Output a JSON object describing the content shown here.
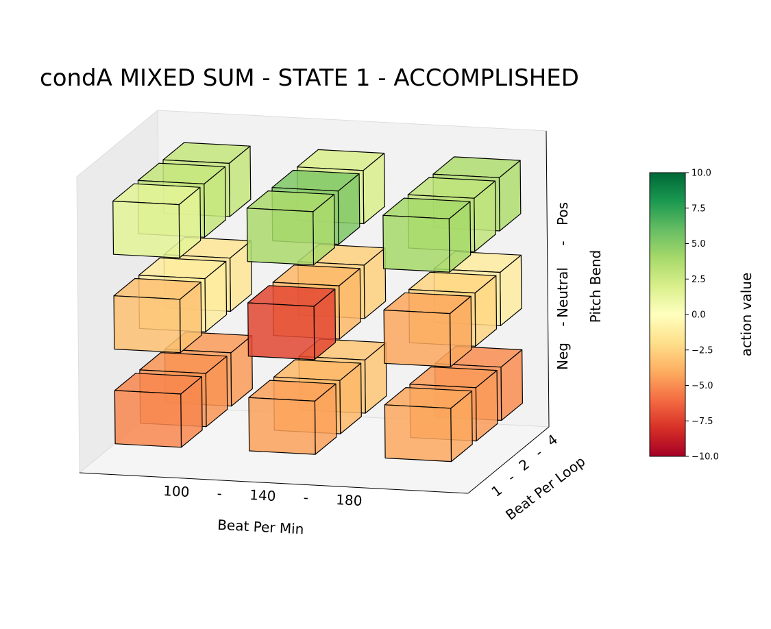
{
  "chart_data": {
    "type": "3d-bar",
    "title": "condA MIXED SUM - STATE 1 - ACCOMPLISHED",
    "x_axis": {
      "label": "Beat Per Min",
      "ticks": [
        "100",
        "-",
        "140",
        "-",
        "180"
      ]
    },
    "y_axis": {
      "label": "Beat Per Loop",
      "ticks": [
        "1",
        "-",
        "2",
        "-",
        "4"
      ]
    },
    "z_axis": {
      "label": "Pitch Bend",
      "ticks": [
        "Neg",
        "-",
        "Neutral",
        "-",
        "Pos"
      ]
    },
    "colorbar": {
      "label": "action value",
      "range": [
        -10,
        10
      ],
      "ticks": [
        "10.0",
        "7.5",
        "5.0",
        "2.5",
        "0.0",
        "−2.5",
        "−5.0",
        "−7.5",
        "−10.0"
      ],
      "colormap": "RdYlGn",
      "stops": [
        "#a50026",
        "#d73027",
        "#f46d43",
        "#fdae61",
        "#fee08b",
        "#ffffbf",
        "#d9ef8b",
        "#a6d96a",
        "#66bd63",
        "#1a9850",
        "#006837"
      ]
    },
    "dimensions": {
      "beat_per_min": [
        "100",
        "140",
        "180"
      ],
      "beat_per_loop": [
        "1",
        "2",
        "4"
      ],
      "pitch_bend": [
        "Neg",
        "Neutral",
        "Pos"
      ]
    },
    "values": [
      {
        "bpm": "100",
        "bpl": "1",
        "pitch": "Pos",
        "value": 1.5
      },
      {
        "bpm": "100",
        "bpl": "2",
        "pitch": "Pos",
        "value": 2.8
      },
      {
        "bpm": "100",
        "bpl": "4",
        "pitch": "Pos",
        "value": 2.8
      },
      {
        "bpm": "140",
        "bpl": "1",
        "pitch": "Pos",
        "value": 3.8
      },
      {
        "bpm": "140",
        "bpl": "2",
        "pitch": "Pos",
        "value": 5.2
      },
      {
        "bpm": "140",
        "bpl": "4",
        "pitch": "Pos",
        "value": 2.0
      },
      {
        "bpm": "180",
        "bpl": "1",
        "pitch": "Pos",
        "value": 4.0
      },
      {
        "bpm": "180",
        "bpl": "2",
        "pitch": "Pos",
        "value": 3.0
      },
      {
        "bpm": "180",
        "bpl": "4",
        "pitch": "Pos",
        "value": 3.6
      },
      {
        "bpm": "100",
        "bpl": "1",
        "pitch": "Neutral",
        "value": -3.2
      },
      {
        "bpm": "100",
        "bpl": "2",
        "pitch": "Neutral",
        "value": -1.2
      },
      {
        "bpm": "100",
        "bpl": "4",
        "pitch": "Neutral",
        "value": -1.6
      },
      {
        "bpm": "140",
        "bpl": "1",
        "pitch": "Neutral",
        "value": -7.2
      },
      {
        "bpm": "140",
        "bpl": "2",
        "pitch": "Neutral",
        "value": -3.6
      },
      {
        "bpm": "140",
        "bpl": "4",
        "pitch": "Neutral",
        "value": -2.6
      },
      {
        "bpm": "180",
        "bpl": "1",
        "pitch": "Neutral",
        "value": -4.2
      },
      {
        "bpm": "180",
        "bpl": "2",
        "pitch": "Neutral",
        "value": -2.4
      },
      {
        "bpm": "180",
        "bpl": "4",
        "pitch": "Neutral",
        "value": -1.2
      },
      {
        "bpm": "100",
        "bpl": "1",
        "pitch": "Neg",
        "value": -5.2
      },
      {
        "bpm": "100",
        "bpl": "2",
        "pitch": "Neg",
        "value": -4.8
      },
      {
        "bpm": "100",
        "bpl": "4",
        "pitch": "Neg",
        "value": -4.6
      },
      {
        "bpm": "140",
        "bpl": "1",
        "pitch": "Neg",
        "value": -4.4
      },
      {
        "bpm": "140",
        "bpl": "2",
        "pitch": "Neg",
        "value": -3.6
      },
      {
        "bpm": "140",
        "bpl": "4",
        "pitch": "Neg",
        "value": -3.0
      },
      {
        "bpm": "180",
        "bpl": "1",
        "pitch": "Neg",
        "value": -4.2
      },
      {
        "bpm": "180",
        "bpl": "2",
        "pitch": "Neg",
        "value": -4.6
      },
      {
        "bpm": "180",
        "bpl": "4",
        "pitch": "Neg",
        "value": -5.0
      }
    ]
  }
}
